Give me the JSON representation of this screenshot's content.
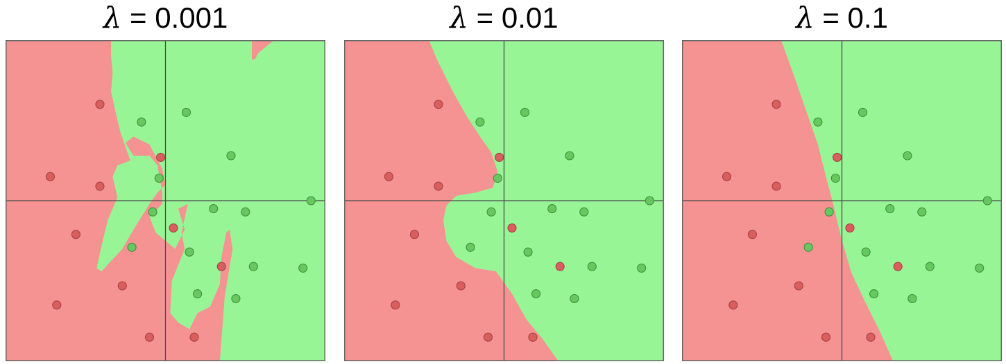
{
  "colors": {
    "red_region": "#f59393",
    "green_region": "#98f595",
    "red_point": "#d95e5e",
    "red_point_edge": "#a44141",
    "green_point": "#66c95f",
    "green_point_edge": "#3f8f3a"
  },
  "panels": [
    {
      "symbol": "λ",
      "value_text": " = 0.001",
      "lambda": 0.001,
      "xlim": [
        -1,
        1
      ],
      "ylim": [
        -1,
        1
      ],
      "regions": {
        "red": [
          [
            [
              -1,
              1
            ],
            [
              -0.34,
              1
            ],
            [
              -0.34,
              0.9
            ],
            [
              -0.33,
              0.8
            ],
            [
              -0.34,
              0.68
            ],
            [
              -0.3,
              0.5
            ],
            [
              -0.28,
              0.42
            ],
            [
              -0.22,
              0.25
            ],
            [
              -0.3,
              0.22
            ],
            [
              -0.33,
              0.15
            ],
            [
              -0.3,
              0.02
            ],
            [
              -0.36,
              -0.12
            ],
            [
              -0.4,
              -0.28
            ],
            [
              -0.43,
              -0.42
            ],
            [
              -0.4,
              -0.44
            ],
            [
              -0.27,
              -0.3
            ],
            [
              -0.2,
              -0.18
            ],
            [
              -0.1,
              -0.02
            ],
            [
              -0.05,
              0.05
            ],
            [
              0.0,
              0.1
            ],
            [
              -0.02,
              0.2
            ],
            [
              -0.1,
              0.35
            ],
            [
              -0.2,
              0.4
            ],
            [
              -0.25,
              0.36
            ],
            [
              -0.2,
              0.28
            ],
            [
              -0.1,
              0.28
            ],
            [
              -0.05,
              0.22
            ],
            [
              -0.02,
              0.05
            ],
            [
              -0.02,
              -0.02
            ],
            [
              -0.1,
              -0.1
            ],
            [
              -0.06,
              -0.2
            ],
            [
              0.06,
              -0.3
            ],
            [
              0.12,
              -0.18
            ],
            [
              0.08,
              -0.05
            ],
            [
              0.14,
              -0.02
            ],
            [
              0.1,
              -0.2
            ],
            [
              0.12,
              -0.3
            ],
            [
              0.04,
              -0.5
            ],
            [
              0.03,
              -0.7
            ],
            [
              0.08,
              -0.76
            ],
            [
              0.15,
              -0.8
            ],
            [
              0.2,
              -0.7
            ],
            [
              0.28,
              -0.66
            ],
            [
              0.34,
              -0.52
            ],
            [
              0.35,
              -0.35
            ],
            [
              0.38,
              -0.2
            ],
            [
              0.4,
              -0.18
            ],
            [
              0.42,
              -0.3
            ],
            [
              0.37,
              -0.6
            ],
            [
              0.34,
              -1
            ],
            [
              -1,
              -1
            ]
          ],
          [
            [
              0.54,
              1
            ],
            [
              0.68,
              1
            ],
            [
              0.58,
              0.92
            ],
            [
              0.56,
              0.88
            ],
            [
              0.54,
              0.88
            ]
          ]
        ]
      },
      "points": [
        {
          "x": -0.41,
          "y": 0.6,
          "class": "red"
        },
        {
          "x": -0.72,
          "y": 0.15,
          "class": "red"
        },
        {
          "x": -0.41,
          "y": 0.09,
          "class": "red"
        },
        {
          "x": -0.03,
          "y": 0.27,
          "class": "red"
        },
        {
          "x": -0.56,
          "y": -0.21,
          "class": "red"
        },
        {
          "x": 0.05,
          "y": -0.17,
          "class": "red"
        },
        {
          "x": -0.27,
          "y": -0.53,
          "class": "red"
        },
        {
          "x": -0.68,
          "y": -0.65,
          "class": "red"
        },
        {
          "x": -0.1,
          "y": -0.85,
          "class": "red"
        },
        {
          "x": 0.35,
          "y": -0.41,
          "class": "red"
        },
        {
          "x": 0.18,
          "y": -0.85,
          "class": "red"
        },
        {
          "x": 0.13,
          "y": 0.55,
          "class": "green"
        },
        {
          "x": -0.15,
          "y": 0.49,
          "class": "green"
        },
        {
          "x": 0.41,
          "y": 0.28,
          "class": "green"
        },
        {
          "x": -0.04,
          "y": 0.14,
          "class": "green"
        },
        {
          "x": -0.08,
          "y": -0.07,
          "class": "green"
        },
        {
          "x": 0.3,
          "y": -0.05,
          "class": "green"
        },
        {
          "x": 0.5,
          "y": -0.07,
          "class": "green"
        },
        {
          "x": 0.91,
          "y": 0.0,
          "class": "green"
        },
        {
          "x": -0.21,
          "y": -0.29,
          "class": "green"
        },
        {
          "x": 0.15,
          "y": -0.32,
          "class": "green"
        },
        {
          "x": 0.55,
          "y": -0.41,
          "class": "green"
        },
        {
          "x": 0.86,
          "y": -0.42,
          "class": "green"
        },
        {
          "x": 0.2,
          "y": -0.58,
          "class": "green"
        },
        {
          "x": 0.44,
          "y": -0.61,
          "class": "green"
        }
      ]
    },
    {
      "symbol": "λ",
      "value_text": " = 0.01",
      "lambda": 0.01,
      "xlim": [
        -1,
        1
      ],
      "ylim": [
        -1,
        1
      ],
      "regions": {
        "red": [
          [
            [
              -1,
              1
            ],
            [
              -0.47,
              1
            ],
            [
              -0.42,
              0.88
            ],
            [
              -0.32,
              0.68
            ],
            [
              -0.23,
              0.52
            ],
            [
              -0.15,
              0.4
            ],
            [
              -0.08,
              0.3
            ],
            [
              -0.04,
              0.18
            ],
            [
              -0.07,
              0.08
            ],
            [
              -0.18,
              0.05
            ],
            [
              -0.3,
              0.03
            ],
            [
              -0.36,
              -0.03
            ],
            [
              -0.38,
              -0.12
            ],
            [
              -0.36,
              -0.25
            ],
            [
              -0.3,
              -0.35
            ],
            [
              -0.18,
              -0.42
            ],
            [
              -0.05,
              -0.44
            ],
            [
              0.05,
              -0.58
            ],
            [
              0.14,
              -0.74
            ],
            [
              0.24,
              -0.86
            ],
            [
              0.34,
              -1
            ],
            [
              -1,
              -1
            ]
          ]
        ]
      },
      "points": [
        {
          "x": -0.41,
          "y": 0.6,
          "class": "red"
        },
        {
          "x": -0.72,
          "y": 0.15,
          "class": "red"
        },
        {
          "x": -0.41,
          "y": 0.09,
          "class": "red"
        },
        {
          "x": -0.03,
          "y": 0.27,
          "class": "red"
        },
        {
          "x": -0.56,
          "y": -0.21,
          "class": "red"
        },
        {
          "x": 0.05,
          "y": -0.17,
          "class": "red"
        },
        {
          "x": -0.27,
          "y": -0.53,
          "class": "red"
        },
        {
          "x": -0.68,
          "y": -0.65,
          "class": "red"
        },
        {
          "x": -0.1,
          "y": -0.85,
          "class": "red"
        },
        {
          "x": 0.35,
          "y": -0.41,
          "class": "red"
        },
        {
          "x": 0.18,
          "y": -0.85,
          "class": "red"
        },
        {
          "x": 0.13,
          "y": 0.55,
          "class": "green"
        },
        {
          "x": -0.15,
          "y": 0.49,
          "class": "green"
        },
        {
          "x": 0.41,
          "y": 0.28,
          "class": "green"
        },
        {
          "x": -0.04,
          "y": 0.14,
          "class": "green"
        },
        {
          "x": -0.08,
          "y": -0.07,
          "class": "green"
        },
        {
          "x": 0.3,
          "y": -0.05,
          "class": "green"
        },
        {
          "x": 0.5,
          "y": -0.07,
          "class": "green"
        },
        {
          "x": 0.91,
          "y": 0.0,
          "class": "green"
        },
        {
          "x": -0.21,
          "y": -0.29,
          "class": "green"
        },
        {
          "x": 0.15,
          "y": -0.32,
          "class": "green"
        },
        {
          "x": 0.55,
          "y": -0.41,
          "class": "green"
        },
        {
          "x": 0.86,
          "y": -0.42,
          "class": "green"
        },
        {
          "x": 0.2,
          "y": -0.58,
          "class": "green"
        },
        {
          "x": 0.44,
          "y": -0.61,
          "class": "green"
        }
      ]
    },
    {
      "symbol": "λ",
      "value_text": " = 0.1",
      "lambda": 0.1,
      "xlim": [
        -1,
        1
      ],
      "ylim": [
        -1,
        1
      ],
      "regions": {
        "red": [
          [
            [
              -1,
              1
            ],
            [
              -0.38,
              1
            ],
            [
              -0.3,
              0.78
            ],
            [
              -0.22,
              0.55
            ],
            [
              -0.15,
              0.35
            ],
            [
              -0.1,
              0.15
            ],
            [
              -0.06,
              0.0
            ],
            [
              0.0,
              -0.25
            ],
            [
              0.06,
              -0.45
            ],
            [
              0.14,
              -0.62
            ],
            [
              0.24,
              -0.82
            ],
            [
              0.32,
              -1
            ],
            [
              -1,
              -1
            ]
          ]
        ]
      },
      "points": [
        {
          "x": -0.41,
          "y": 0.6,
          "class": "red"
        },
        {
          "x": -0.72,
          "y": 0.15,
          "class": "red"
        },
        {
          "x": -0.41,
          "y": 0.09,
          "class": "red"
        },
        {
          "x": -0.03,
          "y": 0.27,
          "class": "red"
        },
        {
          "x": -0.56,
          "y": -0.21,
          "class": "red"
        },
        {
          "x": 0.05,
          "y": -0.17,
          "class": "red"
        },
        {
          "x": -0.27,
          "y": -0.53,
          "class": "red"
        },
        {
          "x": -0.68,
          "y": -0.65,
          "class": "red"
        },
        {
          "x": -0.1,
          "y": -0.85,
          "class": "red"
        },
        {
          "x": 0.35,
          "y": -0.41,
          "class": "red"
        },
        {
          "x": 0.18,
          "y": -0.85,
          "class": "red"
        },
        {
          "x": 0.13,
          "y": 0.55,
          "class": "green"
        },
        {
          "x": -0.15,
          "y": 0.49,
          "class": "green"
        },
        {
          "x": 0.41,
          "y": 0.28,
          "class": "green"
        },
        {
          "x": -0.04,
          "y": 0.14,
          "class": "green"
        },
        {
          "x": -0.08,
          "y": -0.07,
          "class": "green"
        },
        {
          "x": 0.3,
          "y": -0.05,
          "class": "green"
        },
        {
          "x": 0.5,
          "y": -0.07,
          "class": "green"
        },
        {
          "x": 0.91,
          "y": 0.0,
          "class": "green"
        },
        {
          "x": -0.21,
          "y": -0.29,
          "class": "green"
        },
        {
          "x": 0.15,
          "y": -0.32,
          "class": "green"
        },
        {
          "x": 0.55,
          "y": -0.41,
          "class": "green"
        },
        {
          "x": 0.86,
          "y": -0.42,
          "class": "green"
        },
        {
          "x": 0.2,
          "y": -0.58,
          "class": "green"
        },
        {
          "x": 0.44,
          "y": -0.61,
          "class": "green"
        }
      ]
    }
  ]
}
